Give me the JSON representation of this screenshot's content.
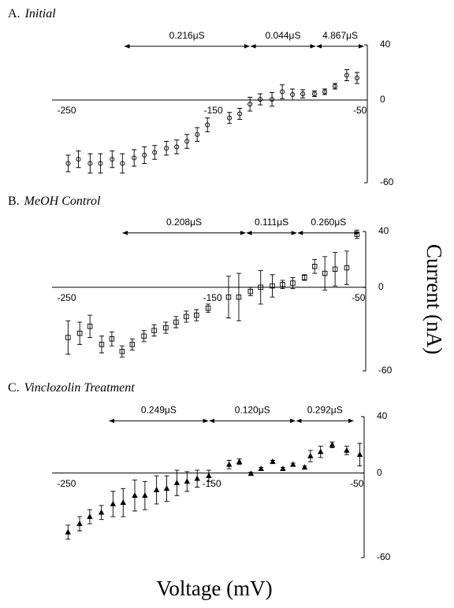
{
  "chart_data": [
    {
      "type": "scatter",
      "label": "A.",
      "title": "Initial",
      "marker": "circle",
      "color": "#000000",
      "x": [
        -249,
        -242,
        -234,
        -227,
        -219,
        -212,
        -204,
        -197,
        -190,
        -182,
        -175,
        -168,
        -161,
        -154,
        -139,
        -132,
        -125,
        -118,
        -110,
        -103,
        -96,
        -89,
        -81,
        -74,
        -67,
        -59,
        -52
      ],
      "values": [
        -46,
        -43,
        -46,
        -46,
        -43,
        -46,
        -42,
        -40,
        -38,
        -35,
        -34,
        -30,
        -25,
        -18,
        -13,
        -10,
        -3,
        0.5,
        0.5,
        6,
        4,
        4.5,
        4.5,
        6,
        10,
        18,
        16
      ],
      "errors": [
        6,
        6,
        7,
        7,
        6,
        7,
        6,
        6,
        5,
        5,
        5,
        5,
        5,
        5,
        4,
        4,
        5,
        4,
        5,
        5,
        4,
        3,
        2,
        2,
        2,
        4,
        4
      ],
      "xlim": [
        -260,
        -45
      ],
      "xticks": [
        -250,
        -150,
        -50
      ],
      "ylim": [
        -60,
        40
      ],
      "yticks": [
        40,
        0,
        -60
      ],
      "annotations": [
        {
          "text": "0.216μS",
          "x": [
            -211,
            -125
          ],
          "y": 39
        },
        {
          "text": "0.044μS",
          "x": [
            -125,
            -80
          ],
          "y": 39
        },
        {
          "text": "4.867μS",
          "x": [
            -80,
            -47
          ],
          "y": 39
        }
      ]
    },
    {
      "type": "scatter",
      "label": "B.",
      "title": "MeOH Control",
      "marker": "square",
      "color": "#000000",
      "x": [
        -249,
        -241,
        -234,
        -226,
        -219,
        -212,
        -205,
        -197,
        -190,
        -182,
        -175,
        -168,
        -161,
        -153,
        -139,
        -132,
        -124,
        -117,
        -109,
        -102,
        -95,
        -87,
        -80,
        -73,
        -66,
        -58,
        -51
      ],
      "values": [
        -36,
        -33,
        -28,
        -41,
        -37,
        -46,
        -41,
        -35,
        -31,
        -29,
        -25,
        -21,
        -20,
        -15,
        -7,
        -7,
        -3,
        0,
        1,
        2,
        3,
        7,
        15,
        10,
        13,
        14,
        38
      ],
      "errors": [
        12,
        8,
        8,
        6,
        5,
        4,
        4,
        4,
        4,
        4,
        4,
        4,
        4,
        3,
        15,
        17,
        3,
        12,
        8,
        3,
        4,
        2,
        5,
        12,
        12,
        12,
        3
      ],
      "xlim": [
        -260,
        -45
      ],
      "xticks": [
        -250,
        -150,
        -50
      ],
      "ylim": [
        -60,
        40
      ],
      "yticks": [
        40,
        0,
        -60
      ],
      "annotations": [
        {
          "text": "0.208μS",
          "x": [
            -212,
            -127
          ],
          "y": 39
        },
        {
          "text": "0.111μS",
          "x": [
            -127,
            -92
          ],
          "y": 39
        },
        {
          "text": "0.260μS",
          "x": [
            -92,
            -49
          ],
          "y": 39
        }
      ]
    },
    {
      "type": "scatter",
      "label": "C.",
      "title": "Vinclozolin Treatment",
      "marker": "triangle",
      "color": "#000000",
      "x": [
        -249,
        -241,
        -234,
        -226,
        -218,
        -211,
        -203,
        -196,
        -188,
        -181,
        -174,
        -167,
        -160,
        -152,
        -138,
        -131,
        -123,
        -116,
        -108,
        -101,
        -94,
        -86,
        -82,
        -75,
        -67,
        -57,
        -48
      ],
      "values": [
        -42,
        -36,
        -31,
        -28,
        -22,
        -21,
        -16,
        -16,
        -12,
        -11,
        -7,
        -6,
        -4,
        -2,
        6,
        8,
        -0.5,
        3,
        8,
        3,
        6,
        4,
        12,
        15,
        20,
        16,
        13
      ],
      "errors": [
        5,
        5,
        5,
        5,
        9,
        10,
        11,
        10,
        10,
        9,
        9,
        7,
        6,
        4,
        3,
        2,
        1,
        1,
        1,
        1,
        1,
        1,
        4,
        4,
        2,
        3,
        8
      ],
      "xlim": [
        -260,
        -45
      ],
      "xticks": [
        -250,
        -150,
        -50
      ],
      "ylim": [
        -60,
        40
      ],
      "yticks": [
        40,
        0,
        -60
      ],
      "annotations": [
        {
          "text": "0.249μS",
          "x": [
            -221,
            -152
          ],
          "y": 37
        },
        {
          "text": "0.120μS",
          "x": [
            -152,
            -92
          ],
          "y": 37
        },
        {
          "text": "0.292μS",
          "x": [
            -92,
            -52
          ],
          "y": 37
        }
      ]
    }
  ],
  "ylabel": "Current (nA)",
  "xlabel": "Voltage (mV)"
}
